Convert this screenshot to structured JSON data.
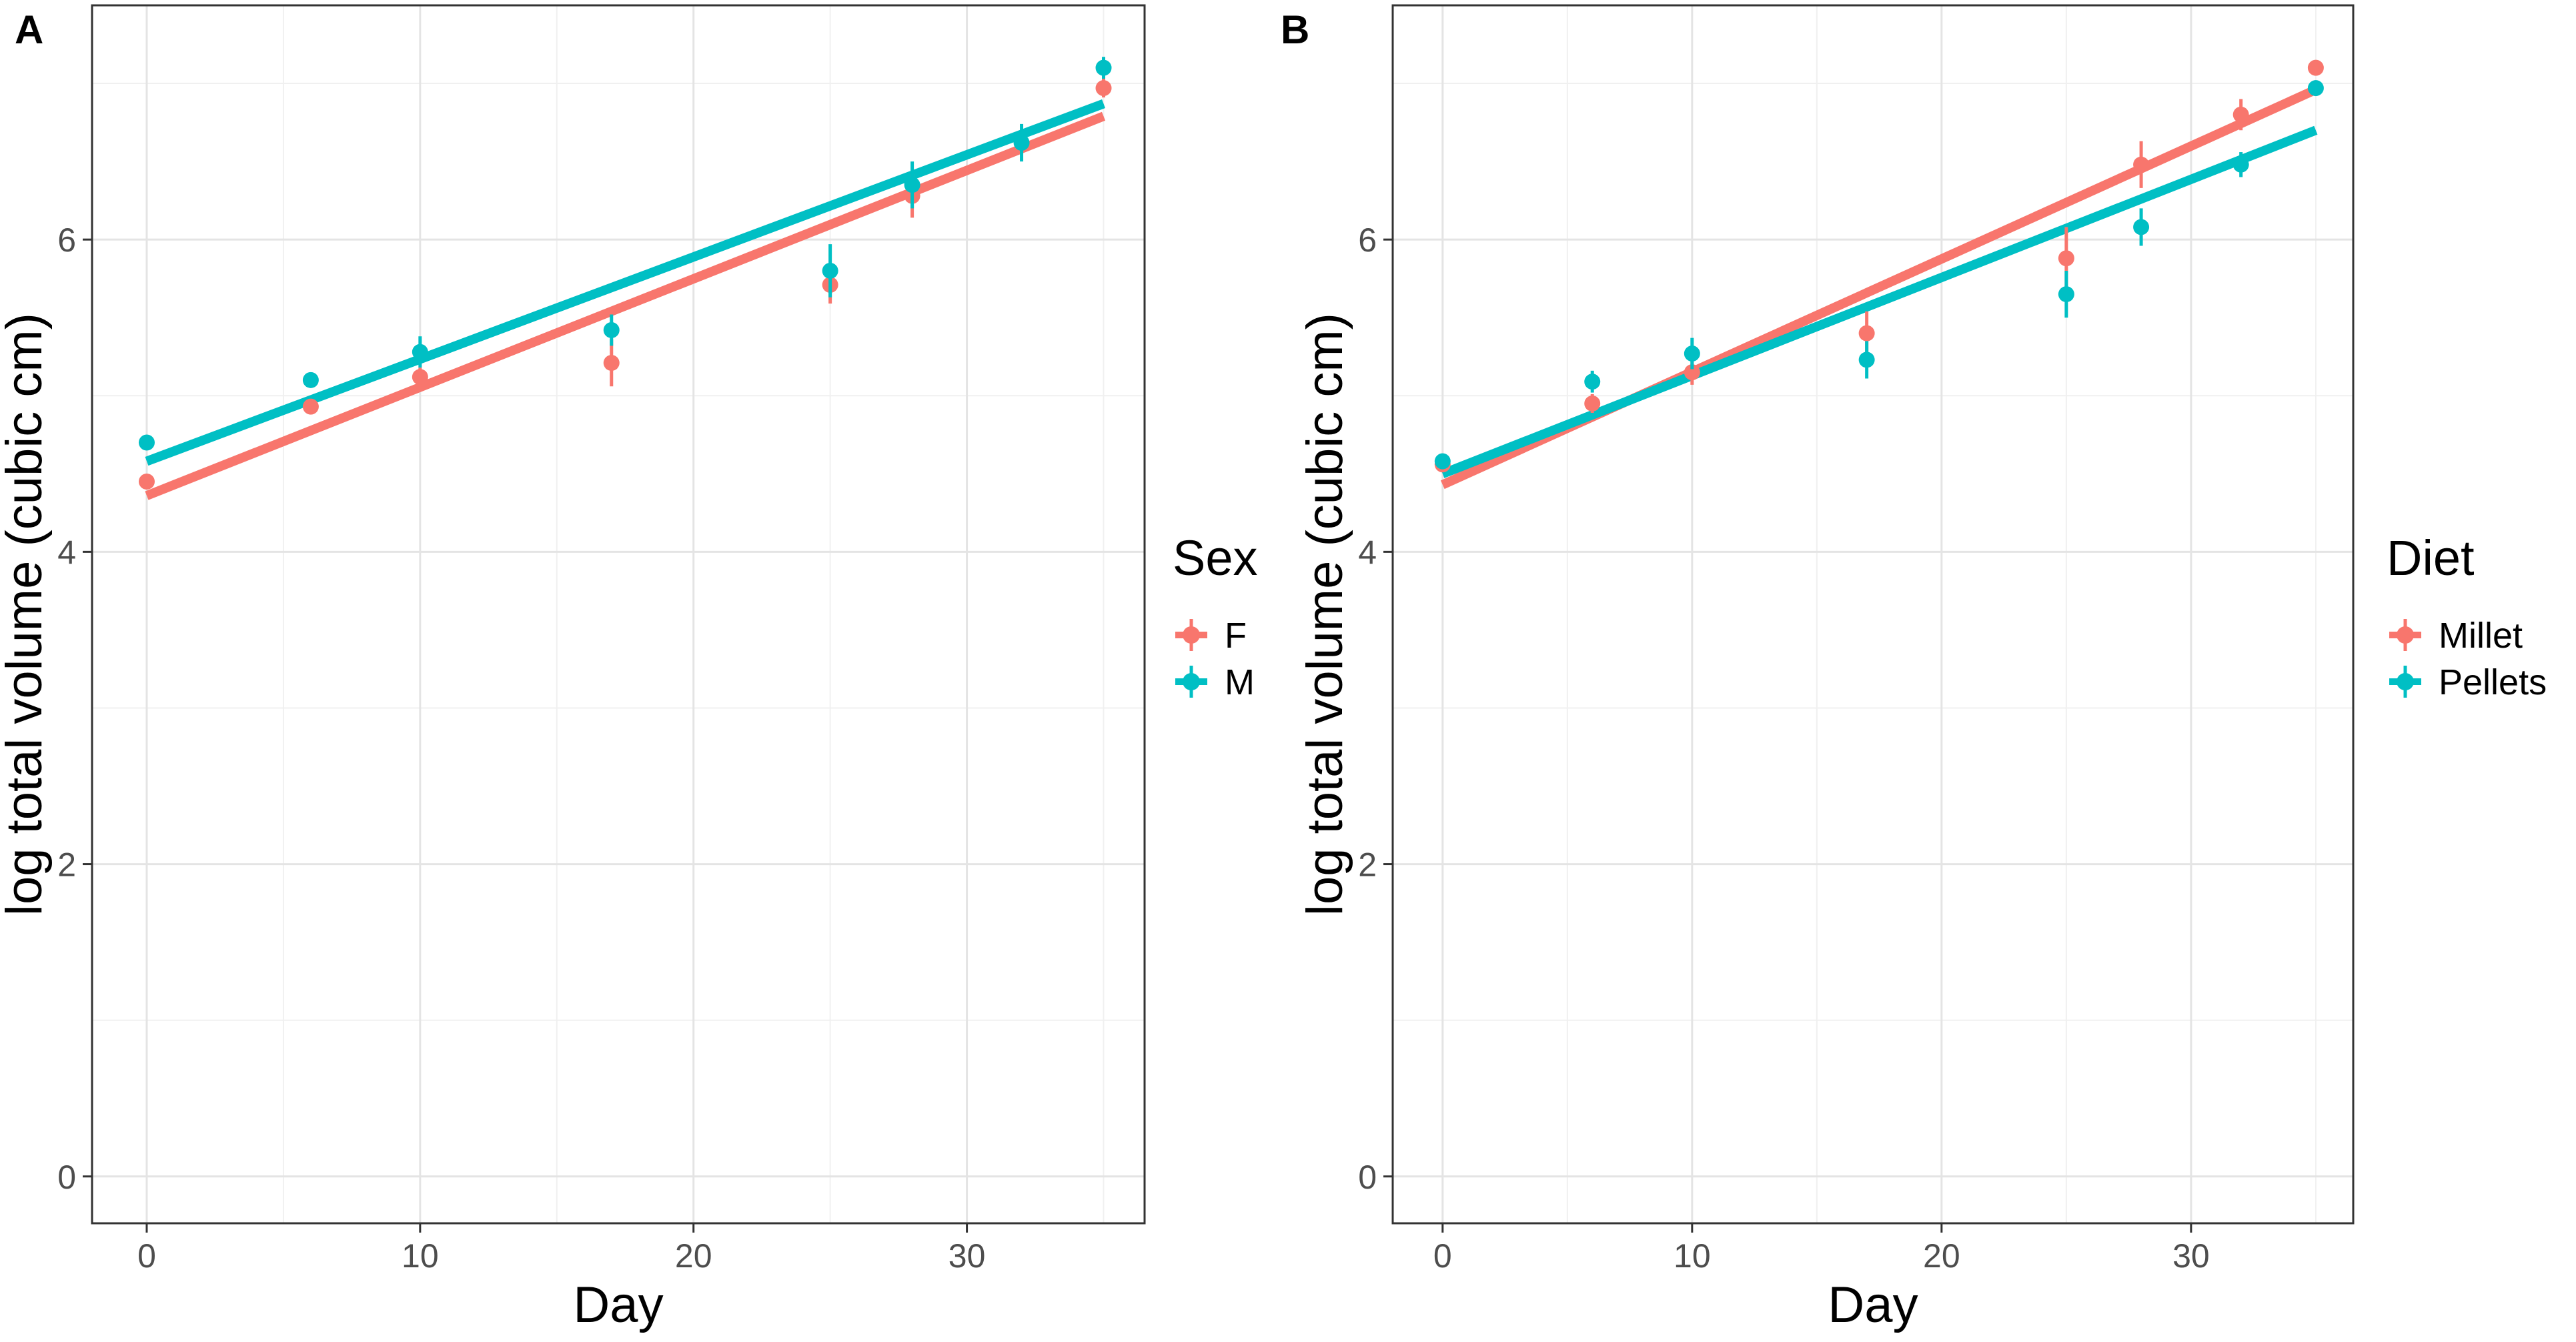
{
  "figure": {
    "panel_labels": [
      "A",
      "B"
    ]
  },
  "chart_data": [
    {
      "type": "scatter",
      "panel": "A",
      "title": "",
      "xlabel": "Day",
      "ylabel": "log total volume (cubic cm)",
      "xlim": [
        -2,
        36.5
      ],
      "ylim": [
        -0.3,
        7.5
      ],
      "xticks": [
        0,
        10,
        20,
        30
      ],
      "yticks": [
        0,
        2,
        4,
        6
      ],
      "grid": true,
      "legend": {
        "title": "Sex",
        "position": "right"
      },
      "series": [
        {
          "name": "F",
          "color": "#F8766D",
          "x": [
            0,
            6,
            10,
            17,
            25,
            28,
            35
          ],
          "y": [
            4.45,
            4.93,
            5.12,
            5.21,
            5.71,
            6.28,
            6.97
          ],
          "err": [
            0.04,
            0.05,
            0.06,
            0.15,
            0.12,
            0.14,
            0.06
          ],
          "fit": {
            "x": [
              0,
              35
            ],
            "y": [
              4.36,
              6.79
            ]
          }
        },
        {
          "name": "M",
          "color": "#00BFC4",
          "x": [
            0,
            6,
            10,
            17,
            25,
            28,
            32,
            35
          ],
          "y": [
            4.7,
            5.1,
            5.28,
            5.42,
            5.8,
            6.35,
            6.62,
            7.1
          ],
          "err": [
            0.04,
            0.05,
            0.1,
            0.1,
            0.17,
            0.15,
            0.12,
            0.07
          ],
          "fit": {
            "x": [
              0,
              35
            ],
            "y": [
              4.58,
              6.87
            ]
          }
        }
      ]
    },
    {
      "type": "scatter",
      "panel": "B",
      "title": "",
      "xlabel": "Day",
      "ylabel": "log total volume (cubic cm)",
      "xlim": [
        -2,
        36.5
      ],
      "ylim": [
        -0.3,
        7.5
      ],
      "xticks": [
        0,
        10,
        20,
        30
      ],
      "yticks": [
        0,
        2,
        4,
        6
      ],
      "grid": true,
      "legend": {
        "title": "Diet",
        "position": "right"
      },
      "series": [
        {
          "name": "Millet",
          "color": "#F8766D",
          "x": [
            0,
            6,
            10,
            17,
            25,
            28,
            32,
            35
          ],
          "y": [
            4.56,
            4.95,
            5.15,
            5.4,
            5.88,
            6.48,
            6.8,
            7.1
          ],
          "err": [
            0.04,
            0.06,
            0.08,
            0.14,
            0.2,
            0.15,
            0.1,
            0.05
          ],
          "fit": {
            "x": [
              0,
              35
            ],
            "y": [
              4.43,
              6.96
            ]
          }
        },
        {
          "name": "Pellets",
          "color": "#00BFC4",
          "x": [
            0,
            6,
            10,
            17,
            25,
            28,
            32,
            35
          ],
          "y": [
            4.58,
            5.09,
            5.27,
            5.23,
            5.65,
            6.08,
            6.48,
            6.97
          ],
          "err": [
            0.05,
            0.07,
            0.1,
            0.12,
            0.15,
            0.12,
            0.08,
            0.05
          ],
          "fit": {
            "x": [
              0,
              35
            ],
            "y": [
              4.5,
              6.7
            ]
          }
        }
      ]
    }
  ]
}
